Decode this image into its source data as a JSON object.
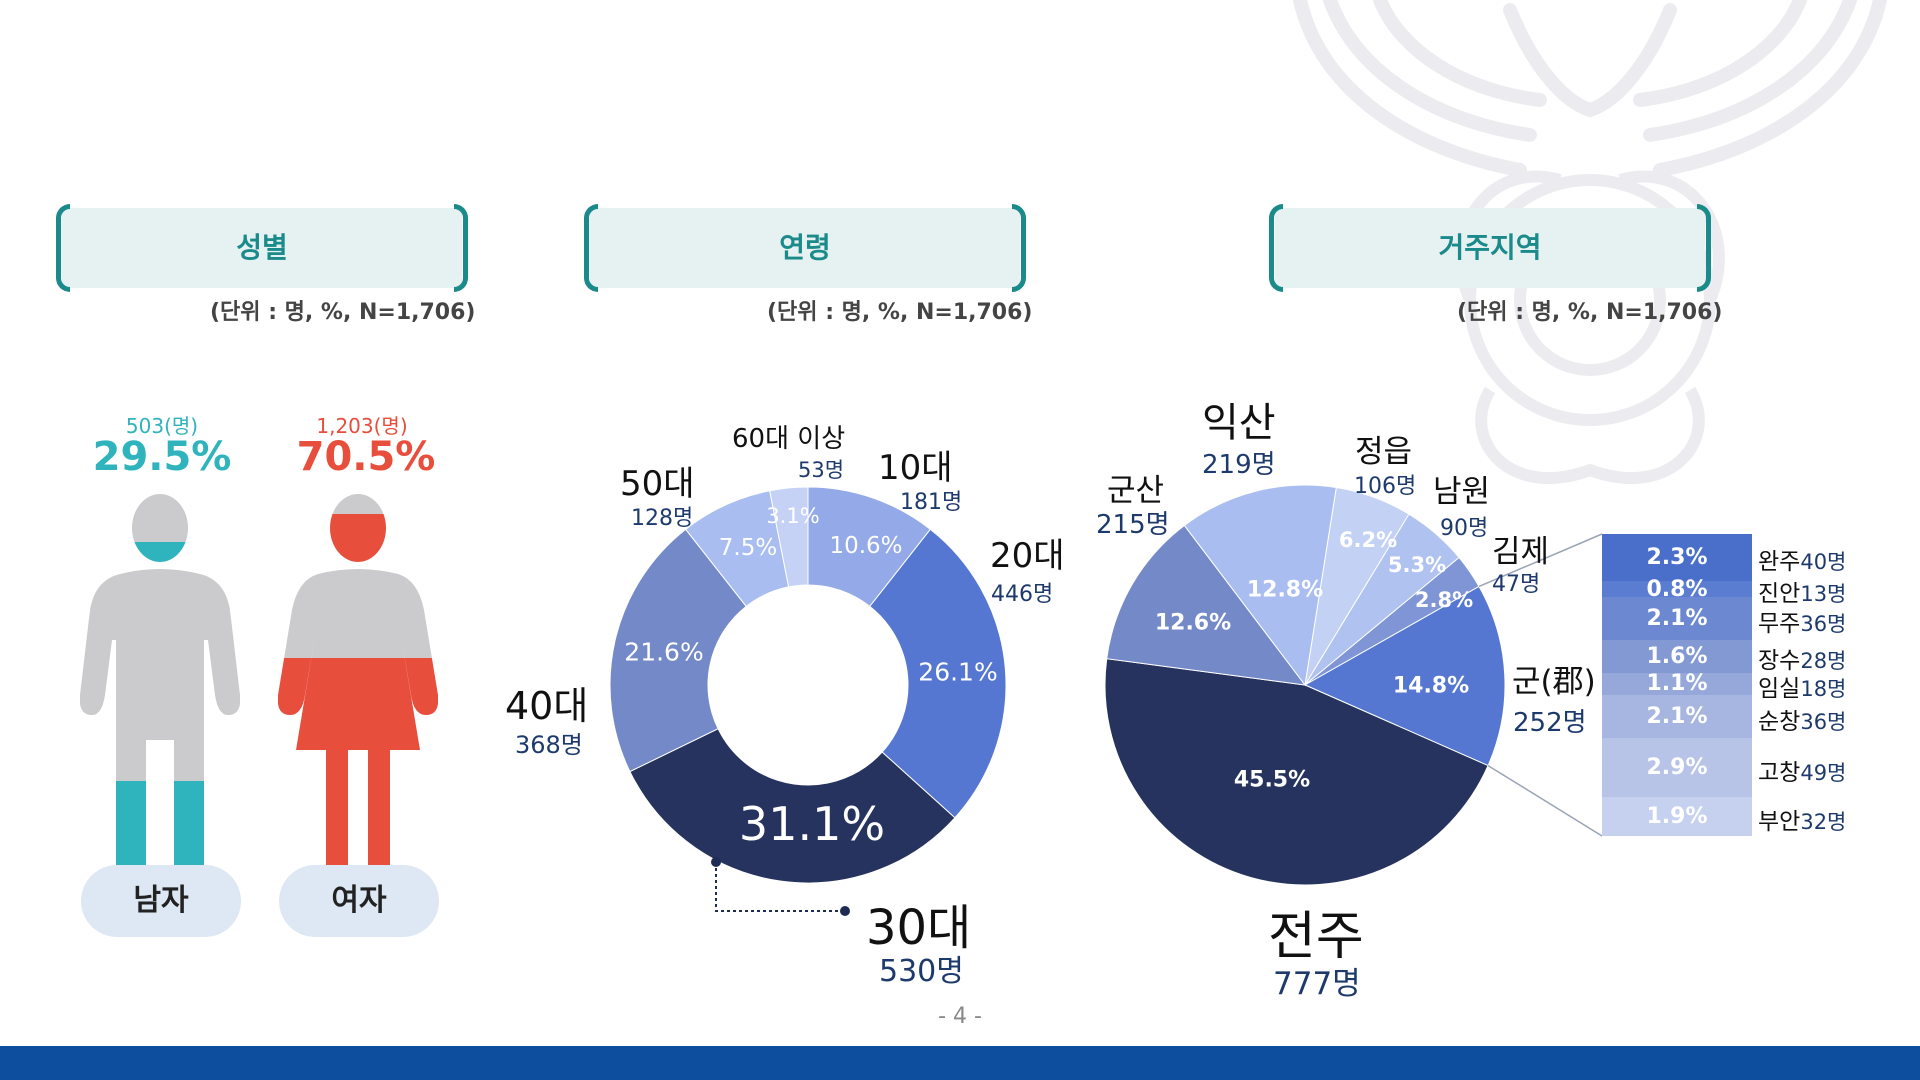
{
  "headers": {
    "gender": "성별",
    "age": "연령",
    "region": "거주지역",
    "unit_label": "(단위 : 명, %, N=1,706)"
  },
  "gender": {
    "male": {
      "label": "남자",
      "count": "503(명)",
      "pct": "29.5%",
      "value": 29.5,
      "color": "#2fb3bd"
    },
    "female": {
      "label": "여자",
      "count": "1,203(명)",
      "pct": "70.5%",
      "value": 70.5,
      "color": "#e84e3c"
    }
  },
  "chart_data": [
    {
      "type": "pie",
      "variant": "donut",
      "title": "연령",
      "categories": [
        "10대",
        "20대",
        "30대",
        "40대",
        "50대",
        "60대 이상"
      ],
      "values": [
        10.6,
        26.1,
        31.1,
        21.6,
        7.5,
        3.1
      ],
      "value_labels": [
        "10.6%",
        "26.1%",
        "31.1%",
        "21.6%",
        "7.5%",
        "3.1%"
      ],
      "counts": [
        "181명",
        "446명",
        "530명",
        "368명",
        "128명",
        "53명"
      ],
      "colors": [
        "#93a9e8",
        "#5577d2",
        "#25335e",
        "#7489c8",
        "#a9bdf0",
        "#c5d2f5"
      ]
    },
    {
      "type": "pie",
      "title": "거주지역",
      "categories": [
        "정읍",
        "남원",
        "김제",
        "군(郡)",
        "전주",
        "군산",
        "익산"
      ],
      "values": [
        6.2,
        5.3,
        2.8,
        14.8,
        45.5,
        12.6,
        12.8
      ],
      "value_labels": [
        "6.2%",
        "5.3%",
        "2.8%",
        "14.8%",
        "45.5%",
        "12.6%",
        "12.8%"
      ],
      "counts": [
        "106명",
        "90명",
        "47명",
        "252명",
        "777명",
        "215명",
        "219명"
      ],
      "colors": [
        "#c3d1f4",
        "#b0c2f0",
        "#7f95d6",
        "#5577d2",
        "#25335e",
        "#7489c8",
        "#a9bdf0"
      ],
      "breakdown": {
        "of": "군(郡)",
        "items": [
          {
            "name": "완주",
            "count": "40명",
            "pct": "2.3%",
            "value": 2.3,
            "color": "#4a6fcb"
          },
          {
            "name": "진안",
            "count": "13명",
            "pct": "0.8%",
            "value": 0.8,
            "color": "#5a7dd2"
          },
          {
            "name": "무주",
            "count": "36명",
            "pct": "2.1%",
            "value": 2.1,
            "color": "#6c88d0"
          },
          {
            "name": "장수",
            "count": "28명",
            "pct": "1.6%",
            "value": 1.6,
            "color": "#8299d3"
          },
          {
            "name": "임실",
            "count": "18명",
            "pct": "1.1%",
            "value": 1.1,
            "color": "#95a8d9"
          },
          {
            "name": "순창",
            "count": "36명",
            "pct": "2.1%",
            "value": 2.1,
            "color": "#a6b6e0"
          },
          {
            "name": "고창",
            "count": "49명",
            "pct": "2.9%",
            "value": 2.9,
            "color": "#b7c4e8"
          },
          {
            "name": "부안",
            "count": "32명",
            "pct": "1.9%",
            "value": 1.9,
            "color": "#c6d1ef"
          }
        ]
      }
    }
  ],
  "footer": {
    "page_number": "- 4 -"
  }
}
